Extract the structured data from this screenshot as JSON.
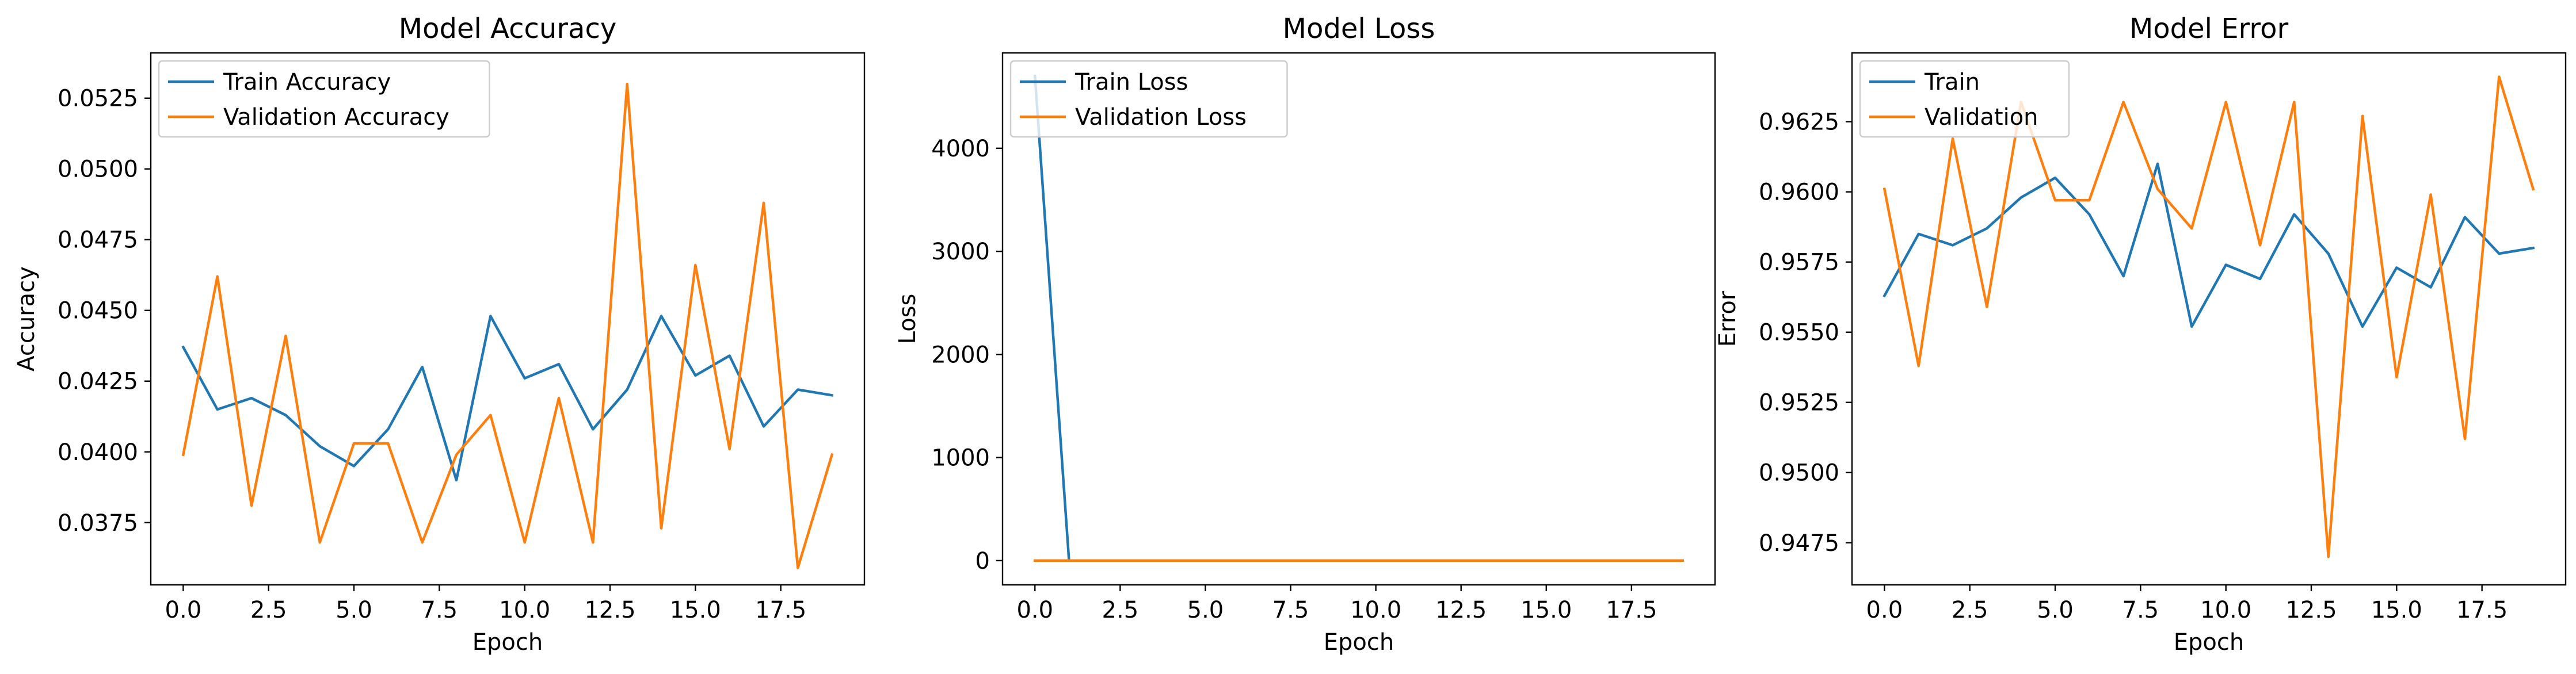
{
  "chart_data": [
    {
      "type": "line",
      "title": "Model Accuracy",
      "xlabel": "Epoch",
      "ylabel": "Accuracy",
      "xlim": [
        -0.95,
        19.95
      ],
      "ylim": [
        0.0353,
        0.0541
      ],
      "xticks": [
        0,
        2.5,
        5,
        7.5,
        10,
        12.5,
        15,
        17.5
      ],
      "xtick_labels": [
        "0.0",
        "2.5",
        "5.0",
        "7.5",
        "10.0",
        "12.5",
        "15.0",
        "17.5"
      ],
      "yticks": [
        0.0375,
        0.04,
        0.0425,
        0.045,
        0.0475,
        0.05,
        0.0525
      ],
      "ytick_labels": [
        "0.0375",
        "0.0400",
        "0.0425",
        "0.0450",
        "0.0475",
        "0.0500",
        "0.0525"
      ],
      "legend_position": "upper-left",
      "x": [
        0,
        1,
        2,
        3,
        4,
        5,
        6,
        7,
        8,
        9,
        10,
        11,
        12,
        13,
        14,
        15,
        16,
        17,
        18,
        19
      ],
      "series": [
        {
          "name": "Train Accuracy",
          "color": "#1f77b4",
          "values": [
            0.0437,
            0.0415,
            0.0419,
            0.0413,
            0.0402,
            0.0395,
            0.0408,
            0.043,
            0.039,
            0.0448,
            0.0426,
            0.0431,
            0.0408,
            0.0422,
            0.0448,
            0.0427,
            0.0434,
            0.0409,
            0.0422,
            0.042
          ]
        },
        {
          "name": "Validation Accuracy",
          "color": "#ff7f0e",
          "values": [
            0.0399,
            0.0462,
            0.0381,
            0.0441,
            0.0368,
            0.0403,
            0.0403,
            0.0368,
            0.0399,
            0.0413,
            0.0368,
            0.0419,
            0.0368,
            0.053,
            0.0373,
            0.0466,
            0.0401,
            0.0488,
            0.0359,
            0.0399
          ]
        }
      ]
    },
    {
      "type": "line",
      "title": "Model Loss",
      "xlabel": "Epoch",
      "ylabel": "Loss",
      "xlim": [
        -0.95,
        19.95
      ],
      "ylim": [
        -235,
        4925
      ],
      "xticks": [
        0,
        2.5,
        5,
        7.5,
        10,
        12.5,
        15,
        17.5
      ],
      "xtick_labels": [
        "0.0",
        "2.5",
        "5.0",
        "7.5",
        "10.0",
        "12.5",
        "15.0",
        "17.5"
      ],
      "yticks": [
        0,
        1000,
        2000,
        3000,
        4000
      ],
      "ytick_labels": [
        "0",
        "1000",
        "2000",
        "3000",
        "4000"
      ],
      "legend_position": "upper-left",
      "x": [
        0,
        1,
        2,
        3,
        4,
        5,
        6,
        7,
        8,
        9,
        10,
        11,
        12,
        13,
        14,
        15,
        16,
        17,
        18,
        19
      ],
      "series": [
        {
          "name": "Train Loss",
          "color": "#1f77b4",
          "values": [
            4700,
            1,
            1,
            1,
            1,
            1,
            1,
            1,
            1,
            1,
            1,
            1,
            1,
            1,
            1,
            1,
            1,
            1,
            1,
            1
          ]
        },
        {
          "name": "Validation Loss",
          "color": "#ff7f0e",
          "values": [
            1,
            1,
            1,
            1,
            1,
            1,
            1,
            1,
            1,
            1,
            1,
            1,
            1,
            1,
            1,
            1,
            1,
            1,
            1,
            1
          ]
        }
      ]
    },
    {
      "type": "line",
      "title": "Model Error",
      "xlabel": "Epoch",
      "ylabel": "Error",
      "xlim": [
        -0.95,
        19.95
      ],
      "ylim": [
        0.946,
        0.96495
      ],
      "xticks": [
        0,
        2.5,
        5,
        7.5,
        10,
        12.5,
        15,
        17.5
      ],
      "xtick_labels": [
        "0.0",
        "2.5",
        "5.0",
        "7.5",
        "10.0",
        "12.5",
        "15.0",
        "17.5"
      ],
      "yticks": [
        0.9475,
        0.95,
        0.9525,
        0.955,
        0.9575,
        0.96,
        0.9625
      ],
      "ytick_labels": [
        "0.9475",
        "0.9500",
        "0.9525",
        "0.9550",
        "0.9575",
        "0.9600",
        "0.9625"
      ],
      "legend_position": "upper-left",
      "x": [
        0,
        1,
        2,
        3,
        4,
        5,
        6,
        7,
        8,
        9,
        10,
        11,
        12,
        13,
        14,
        15,
        16,
        17,
        18,
        19
      ],
      "series": [
        {
          "name": "Train",
          "color": "#1f77b4",
          "values": [
            0.9563,
            0.9585,
            0.9581,
            0.9587,
            0.9598,
            0.9605,
            0.9592,
            0.957,
            0.961,
            0.9552,
            0.9574,
            0.9569,
            0.9592,
            0.9578,
            0.9552,
            0.9573,
            0.9566,
            0.9591,
            0.9578,
            0.958
          ]
        },
        {
          "name": "Validation",
          "color": "#ff7f0e",
          "values": [
            0.9601,
            0.9538,
            0.9619,
            0.9559,
            0.9632,
            0.9597,
            0.9597,
            0.9632,
            0.9601,
            0.9587,
            0.9632,
            0.9581,
            0.9632,
            0.947,
            0.9627,
            0.9534,
            0.9599,
            0.9512,
            0.9641,
            0.9601
          ]
        }
      ]
    }
  ]
}
